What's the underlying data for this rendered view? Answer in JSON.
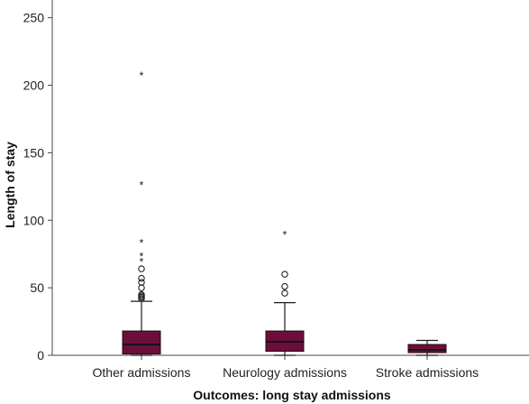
{
  "chart_data": {
    "type": "boxplot",
    "title": "",
    "xlabel": "Outcomes: long stay admissions",
    "ylabel": "Length of stay",
    "ylim": [
      0,
      260
    ],
    "yticks": [
      0,
      50,
      100,
      150,
      200,
      250
    ],
    "grid": false,
    "colors": {
      "box": "#6b0f3a"
    },
    "categories": [
      "Other admissions",
      "Neurology admissions",
      "Stroke admissions"
    ],
    "boxes": [
      {
        "name": "Other admissions",
        "min": 0,
        "q1": 1,
        "median": 8,
        "q3": 18,
        "max": 40,
        "outliers": [
          42,
          43,
          44,
          45,
          50,
          54,
          57,
          64
        ],
        "extremes": [
          71,
          75,
          85,
          128,
          209
        ]
      },
      {
        "name": "Neurology admissions",
        "min": 0,
        "q1": 3,
        "median": 10,
        "q3": 18,
        "max": 39,
        "outliers": [
          46,
          51,
          60
        ],
        "extremes": [
          91
        ]
      },
      {
        "name": "Stroke admissions",
        "min": 0,
        "q1": 2,
        "median": 4,
        "q3": 8,
        "max": 11,
        "outliers": [],
        "extremes": []
      }
    ]
  }
}
